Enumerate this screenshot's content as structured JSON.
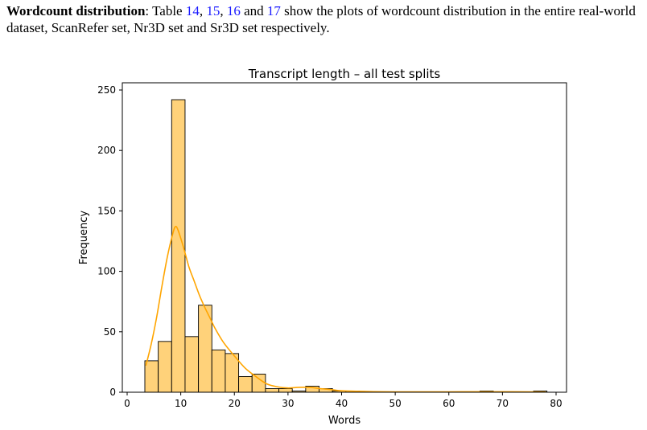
{
  "paragraph": {
    "lead": "Wordcount distribution",
    "t1": ": Table ",
    "r1": "14",
    "t2": ", ",
    "r2": "15",
    "t3": ", ",
    "r3": "16",
    "t4": " and ",
    "r4": "17",
    "t5": " show the plots of wordcount distribution in the entire real-world dataset, ScanRefer set, Nr3D set and Sr3D set respectively."
  },
  "colors": {
    "bar_fill": "#ffd27a",
    "bar_edge": "#000000",
    "kde_line": "#ffa500",
    "link": "#1a1aff"
  },
  "chart_data": {
    "type": "bar",
    "title": "Transcript length – all test splits",
    "xlabel": "Words",
    "ylabel": "Frequency",
    "xlim": [
      0,
      80
    ],
    "ylim": [
      0,
      250
    ],
    "xticks": [
      0,
      10,
      20,
      30,
      40,
      50,
      60,
      70,
      80
    ],
    "yticks": [
      0,
      50,
      100,
      150,
      200,
      250
    ],
    "grid": false,
    "bin_edges": [
      3.3,
      5.8,
      8.3,
      10.8,
      13.3,
      15.8,
      18.3,
      20.8,
      23.3,
      25.8,
      28.3,
      30.8,
      33.3,
      35.8,
      38.3,
      40.8,
      43.3,
      45.8,
      48.3,
      50.8,
      53.3,
      55.8,
      58.3,
      60.8,
      63.3,
      65.8,
      68.3,
      70.8,
      73.3,
      75.8,
      78.3
    ],
    "values": [
      26,
      42,
      242,
      46,
      72,
      35,
      32,
      13,
      15,
      3,
      3,
      1,
      5,
      3,
      1,
      1,
      0,
      0,
      0,
      0,
      0,
      0,
      0,
      0,
      0,
      1,
      0,
      0,
      0,
      1
    ],
    "kde": {
      "x": [
        3.5,
        4.5,
        5.5,
        6.5,
        7.5,
        8.5,
        9.0,
        9.5,
        10.5,
        11.5,
        12.5,
        13.5,
        14.5,
        15.5,
        16.5,
        18,
        20,
        22,
        24,
        26,
        28,
        30,
        32,
        34,
        36,
        38,
        40,
        43,
        46,
        50,
        55,
        60,
        65,
        70,
        75,
        78
      ],
      "y": [
        22,
        40,
        62,
        88,
        112,
        131,
        137,
        134,
        120,
        104,
        92,
        80,
        70,
        61,
        52,
        41,
        30,
        20,
        13,
        7,
        4.5,
        3.5,
        4,
        4,
        3,
        2.2,
        1.2,
        0.8,
        0.5,
        0.3,
        0.3,
        0.3,
        0.4,
        0.4,
        0.3,
        0.2
      ]
    }
  }
}
